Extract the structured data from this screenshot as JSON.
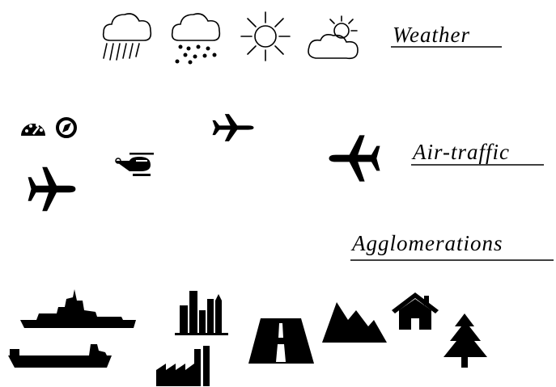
{
  "sections": [
    {
      "title": "Weather"
    },
    {
      "title": "Air-traffic"
    },
    {
      "title": "Agglomerations"
    }
  ]
}
